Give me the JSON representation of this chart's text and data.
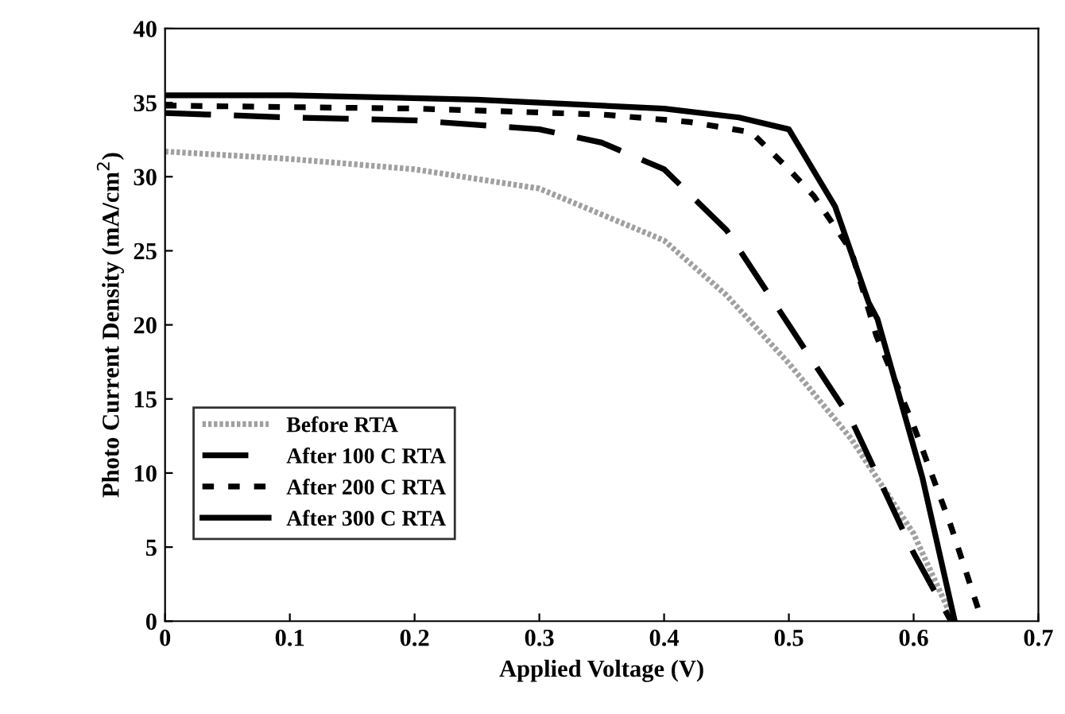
{
  "chart_data": {
    "type": "line",
    "xlabel": "Applied Voltage (V)",
    "ylabel": "Photo Current Density (mA/cm$^{2}$)",
    "xlim": [
      0,
      0.7
    ],
    "xticks": [
      0,
      0.1,
      0.2,
      0.3,
      0.4,
      0.5,
      0.6,
      0.7
    ],
    "ylim": [
      0,
      40
    ],
    "yticks": [
      0,
      5,
      10,
      15,
      20,
      25,
      30,
      35,
      40
    ],
    "grid": false,
    "legend": "lower left",
    "marker": "none",
    "series": [
      {
        "name": "Before RTA",
        "color": "#a0a0a0",
        "line_style": "dotted",
        "x": [
          0,
          0.1,
          0.2,
          0.3,
          0.4,
          0.45,
          0.5,
          0.55,
          0.6,
          0.632
        ],
        "values": [
          31.7,
          31.2,
          30.5,
          29.2,
          25.7,
          22,
          17.4,
          12.3,
          5.9,
          0
        ]
      },
      {
        "name": "After 100 C RTA",
        "color": "#000000",
        "line_style": "dashed",
        "x": [
          0,
          0.1,
          0.2,
          0.3,
          0.35,
          0.4,
          0.45,
          0.5,
          0.55,
          0.6,
          0.63
        ],
        "values": [
          34.3,
          34,
          33.8,
          33.2,
          32.3,
          30.5,
          26.4,
          20,
          13.6,
          4.6,
          0
        ]
      },
      {
        "name": "After 200 C RTA",
        "color": "#000000",
        "line_style": "dotted",
        "x": [
          0,
          0.1,
          0.2,
          0.35,
          0.42,
          0.47,
          0.5,
          0.52,
          0.55,
          0.57,
          0.6,
          0.63,
          0.655
        ],
        "values": [
          34.8,
          34.7,
          34.6,
          34.2,
          33.7,
          33,
          30.5,
          28.7,
          25,
          19.3,
          13.2,
          6.4,
          0
        ]
      },
      {
        "name": "After 300 C RTA",
        "color": "#000000",
        "line_style": "solid",
        "x": [
          0,
          0.1,
          0.25,
          0.4,
          0.46,
          0.5,
          0.537,
          0.564,
          0.571,
          0.607,
          0.633
        ],
        "values": [
          35.5,
          35.5,
          35.2,
          34.6,
          34,
          33.2,
          28,
          21.5,
          20.4,
          9.7,
          0
        ]
      }
    ]
  }
}
